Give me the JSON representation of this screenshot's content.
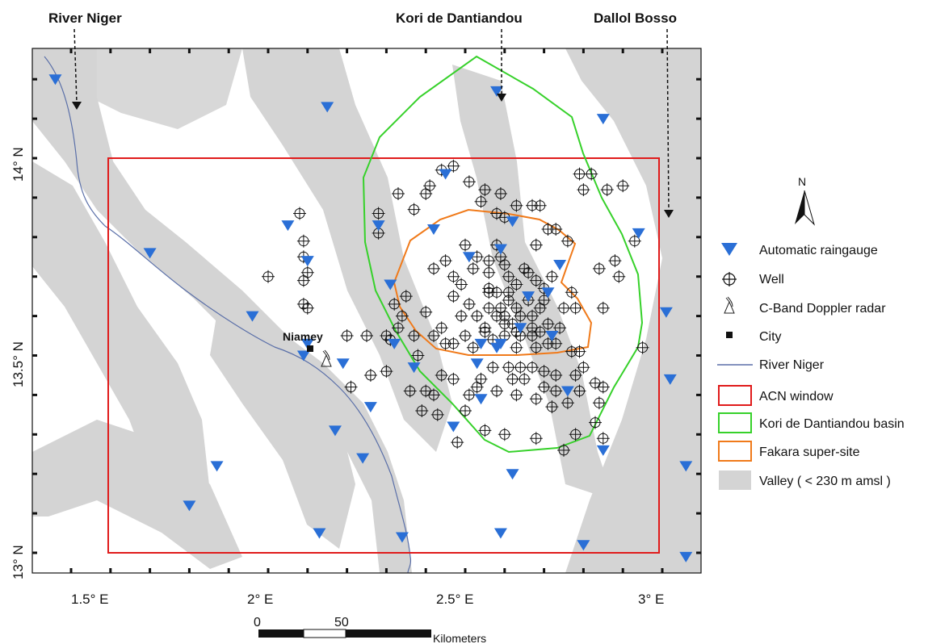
{
  "top_labels": {
    "river": "River Niger",
    "kori": "Kori de Dantiandou",
    "dallol": "Dallol Bosso"
  },
  "city_label": "Niamey",
  "axes": {
    "x_ticks": [
      "1.5° E",
      "2° E",
      "2.5° E",
      "3° E"
    ],
    "y_ticks": [
      "14° N",
      "13.5° N",
      "13° N"
    ]
  },
  "north_label": "N",
  "scale_bar": {
    "labels": [
      "0",
      "50"
    ],
    "unit": "Kilometers"
  },
  "legend": {
    "raingauge": "Automatic raingauge",
    "well": "Well",
    "radar": "C-Band Doppler radar",
    "city": "City",
    "river": "River Niger",
    "acn": "ACN window",
    "kori": "Kori de Dantiandou basin",
    "fakara": "Fakara super-site",
    "valley": "Valley ( < 230 m amsl )"
  },
  "colors": {
    "raingauge": "#2a6fd6",
    "acn": "#e01b1b",
    "kori": "#36d12a",
    "fakara": "#f07a1a",
    "valley": "#d4d4d4",
    "river": "#5a6fa8"
  },
  "raingauges": [
    [
      1.46,
      14.2
    ],
    [
      1.7,
      13.76
    ],
    [
      1.96,
      13.6
    ],
    [
      2.05,
      13.83
    ],
    [
      2.15,
      14.13
    ],
    [
      2.1,
      13.74
    ],
    [
      2.09,
      13.5
    ],
    [
      2.1,
      13.53
    ],
    [
      2.19,
      13.48
    ],
    [
      2.17,
      13.31
    ],
    [
      2.24,
      13.24
    ],
    [
      2.26,
      13.37
    ],
    [
      2.28,
      13.83
    ],
    [
      2.31,
      13.68
    ],
    [
      2.32,
      13.53
    ],
    [
      2.37,
      13.47
    ],
    [
      2.42,
      13.82
    ],
    [
      2.45,
      13.96
    ],
    [
      2.51,
      13.75
    ],
    [
      2.58,
      14.17
    ],
    [
      2.59,
      13.77
    ],
    [
      2.62,
      13.84
    ],
    [
      2.64,
      13.57
    ],
    [
      2.66,
      13.65
    ],
    [
      2.72,
      13.55
    ],
    [
      2.71,
      13.66
    ],
    [
      2.74,
      13.73
    ],
    [
      2.76,
      13.41
    ],
    [
      2.85,
      14.1
    ],
    [
      2.94,
      13.81
    ],
    [
      3.01,
      13.61
    ],
    [
      3.02,
      13.44
    ],
    [
      3.06,
      13.22
    ],
    [
      3.06,
      12.99
    ],
    [
      2.85,
      13.26
    ],
    [
      2.8,
      13.02
    ],
    [
      2.62,
      13.2
    ],
    [
      2.59,
      13.05
    ],
    [
      2.47,
      13.32
    ],
    [
      2.54,
      13.39
    ],
    [
      2.53,
      13.48
    ],
    [
      2.58,
      13.52
    ],
    [
      2.34,
      13.04
    ],
    [
      2.13,
      13.05
    ],
    [
      1.87,
      13.22
    ],
    [
      1.8,
      13.12
    ],
    [
      2.59,
      13.53
    ],
    [
      2.54,
      13.53
    ]
  ],
  "wells": [
    [
      2.08,
      13.86
    ],
    [
      2.09,
      13.79
    ],
    [
      2.09,
      13.75
    ],
    [
      2.1,
      13.71
    ],
    [
      2.09,
      13.69
    ],
    [
      2.09,
      13.63
    ],
    [
      2.1,
      13.62
    ],
    [
      2.0,
      13.7
    ],
    [
      2.2,
      13.55
    ],
    [
      2.25,
      13.55
    ],
    [
      2.3,
      13.55
    ],
    [
      2.31,
      13.54
    ],
    [
      2.21,
      13.42
    ],
    [
      2.26,
      13.45
    ],
    [
      2.3,
      13.46
    ],
    [
      2.34,
      13.6
    ],
    [
      2.35,
      13.65
    ],
    [
      2.36,
      13.41
    ],
    [
      2.32,
      13.63
    ],
    [
      2.33,
      13.57
    ],
    [
      2.28,
      13.86
    ],
    [
      2.28,
      13.81
    ],
    [
      2.33,
      13.91
    ],
    [
      2.37,
      13.87
    ],
    [
      2.4,
      13.91
    ],
    [
      2.41,
      13.93
    ],
    [
      2.44,
      13.97
    ],
    [
      2.47,
      13.98
    ],
    [
      2.51,
      13.94
    ],
    [
      2.55,
      13.92
    ],
    [
      2.54,
      13.89
    ],
    [
      2.59,
      13.91
    ],
    [
      2.63,
      13.88
    ],
    [
      2.67,
      13.88
    ],
    [
      2.69,
      13.88
    ],
    [
      2.58,
      13.86
    ],
    [
      2.6,
      13.85
    ],
    [
      2.71,
      13.82
    ],
    [
      2.73,
      13.82
    ],
    [
      2.76,
      13.79
    ],
    [
      2.79,
      13.96
    ],
    [
      2.8,
      13.92
    ],
    [
      2.82,
      13.96
    ],
    [
      2.86,
      13.92
    ],
    [
      2.9,
      13.93
    ],
    [
      2.93,
      13.79
    ],
    [
      2.88,
      13.74
    ],
    [
      2.84,
      13.72
    ],
    [
      2.89,
      13.7
    ],
    [
      2.85,
      13.62
    ],
    [
      2.95,
      13.52
    ],
    [
      2.73,
      13.53
    ],
    [
      2.78,
      13.45
    ],
    [
      2.8,
      13.47
    ],
    [
      2.83,
      13.43
    ],
    [
      2.85,
      13.42
    ],
    [
      2.84,
      13.38
    ],
    [
      2.83,
      13.33
    ],
    [
      2.85,
      13.29
    ],
    [
      2.78,
      13.3
    ],
    [
      2.75,
      13.26
    ],
    [
      2.68,
      13.29
    ],
    [
      2.6,
      13.3
    ],
    [
      2.55,
      13.31
    ],
    [
      2.48,
      13.28
    ],
    [
      2.43,
      13.35
    ],
    [
      2.42,
      13.4
    ],
    [
      2.4,
      13.41
    ],
    [
      2.39,
      13.36
    ],
    [
      2.5,
      13.36
    ],
    [
      2.53,
      13.42
    ],
    [
      2.57,
      13.47
    ],
    [
      2.61,
      13.47
    ],
    [
      2.64,
      13.47
    ],
    [
      2.67,
      13.47
    ],
    [
      2.7,
      13.46
    ],
    [
      2.73,
      13.45
    ],
    [
      2.68,
      13.39
    ],
    [
      2.72,
      13.37
    ],
    [
      2.76,
      13.38
    ],
    [
      2.63,
      13.4
    ],
    [
      2.45,
      13.53
    ],
    [
      2.47,
      13.53
    ],
    [
      2.49,
      13.6
    ],
    [
      2.47,
      13.65
    ],
    [
      2.42,
      13.72
    ],
    [
      2.45,
      13.74
    ],
    [
      2.5,
      13.78
    ],
    [
      2.52,
      13.72
    ],
    [
      2.56,
      13.74
    ],
    [
      2.56,
      13.66
    ],
    [
      2.59,
      13.62
    ],
    [
      2.6,
      13.6
    ],
    [
      2.63,
      13.62
    ],
    [
      2.62,
      13.58
    ],
    [
      2.64,
      13.6
    ],
    [
      2.64,
      13.55
    ],
    [
      2.67,
      13.55
    ],
    [
      2.67,
      13.6
    ],
    [
      2.69,
      13.62
    ],
    [
      2.7,
      13.67
    ],
    [
      2.72,
      13.7
    ],
    [
      2.65,
      13.72
    ],
    [
      2.63,
      13.68
    ],
    [
      2.61,
      13.7
    ],
    [
      2.6,
      13.73
    ],
    [
      2.59,
      13.75
    ],
    [
      2.58,
      13.78
    ],
    [
      2.56,
      13.62
    ],
    [
      2.53,
      13.6
    ],
    [
      2.51,
      13.63
    ],
    [
      2.5,
      13.55
    ],
    [
      2.52,
      13.52
    ],
    [
      2.55,
      13.56
    ],
    [
      2.57,
      13.54
    ],
    [
      2.6,
      13.55
    ],
    [
      2.63,
      13.52
    ],
    [
      2.68,
      13.52
    ],
    [
      2.71,
      13.53
    ],
    [
      2.74,
      13.57
    ],
    [
      2.77,
      13.51
    ],
    [
      2.79,
      13.51
    ],
    [
      2.75,
      13.62
    ],
    [
      2.77,
      13.66
    ],
    [
      2.78,
      13.62
    ],
    [
      2.68,
      13.78
    ],
    [
      2.56,
      13.71
    ],
    [
      2.4,
      13.61
    ],
    [
      2.42,
      13.55
    ],
    [
      2.38,
      13.5
    ],
    [
      2.37,
      13.55
    ],
    [
      2.44,
      13.57
    ],
    [
      2.49,
      13.68
    ],
    [
      2.47,
      13.7
    ],
    [
      2.53,
      13.75
    ],
    [
      2.66,
      13.71
    ],
    [
      2.68,
      13.69
    ],
    [
      2.7,
      13.64
    ],
    [
      2.56,
      13.67
    ],
    [
      2.58,
      13.66
    ],
    [
      2.61,
      13.64
    ],
    [
      2.61,
      13.66
    ],
    [
      2.66,
      13.64
    ],
    [
      2.58,
      13.6
    ],
    [
      2.55,
      13.57
    ],
    [
      2.6,
      13.58
    ],
    [
      2.63,
      13.56
    ],
    [
      2.67,
      13.57
    ],
    [
      2.69,
      13.56
    ],
    [
      2.71,
      13.58
    ],
    [
      2.44,
      13.45
    ],
    [
      2.47,
      13.44
    ],
    [
      2.54,
      13.44
    ],
    [
      2.51,
      13.4
    ],
    [
      2.58,
      13.41
    ],
    [
      2.62,
      13.44
    ],
    [
      2.65,
      13.44
    ],
    [
      2.7,
      13.42
    ],
    [
      2.73,
      13.41
    ],
    [
      2.79,
      13.41
    ]
  ]
}
